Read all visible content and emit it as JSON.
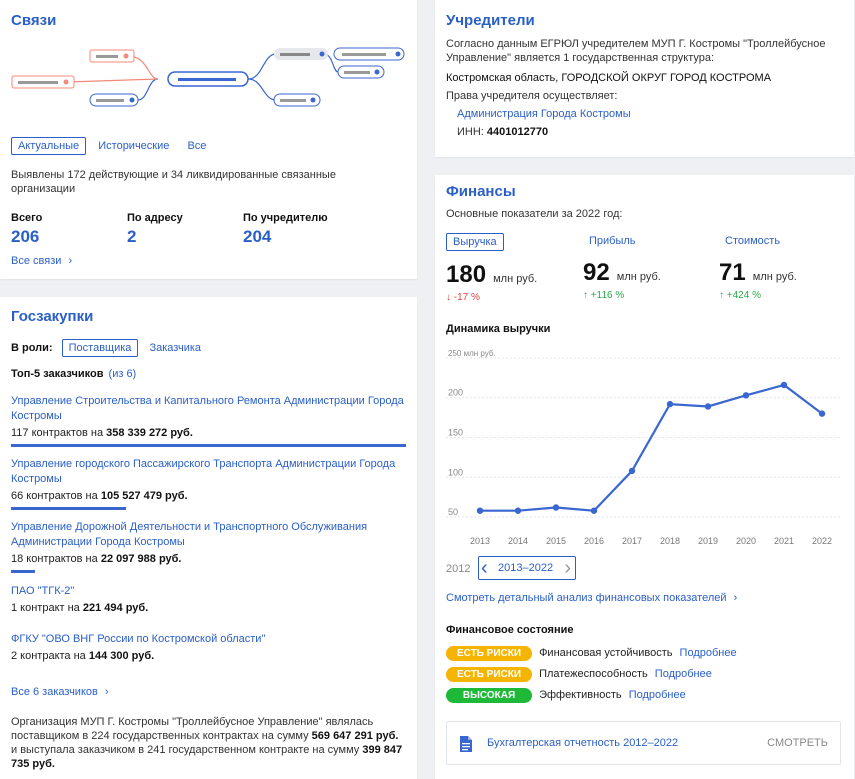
{
  "links": {
    "title": "Связи",
    "tabs": [
      "Актуальные",
      "Исторические",
      "Все"
    ],
    "description": "Выявлены 172 действующие и 34 ликвидированные связанные организации",
    "stats": [
      {
        "label": "Всего",
        "value": "206"
      },
      {
        "label": "По адресу",
        "value": "2"
      },
      {
        "label": "По учредителю",
        "value": "204"
      }
    ],
    "all_link": "Все связи"
  },
  "founders": {
    "title": "Учредители",
    "text": "Согласно данным ЕГРЮЛ учредителем МУП Г. Костромы \"Троллейбусное Управление\" является 1 государственная структура:",
    "region": "Костромская область, ГОРОДСКОЙ ОКРУГ ГОРОД КОСТРОМА",
    "rights_label": "Права учредителя осуществляет:",
    "org": "Администрация Города Костромы",
    "inn_label": "ИНН:",
    "inn": "4401012770"
  },
  "procurement": {
    "title": "Госзакупки",
    "role_label": "В роли:",
    "roles": [
      "Поставщика",
      "Заказчика"
    ],
    "top_label": "Топ-5 заказчиков",
    "top_count": "(из 6)",
    "customers": [
      {
        "name": "Управление Строительства и Капитального Ремонта Администрации Города Костромы",
        "contracts": "117 контрактов на",
        "sum": "358 339 272 руб.",
        "share": 1.0
      },
      {
        "name": "Управление городского Пассажирского Транспорта Администрации Города Костромы",
        "contracts": "66 контрактов на",
        "sum": "105 527 479 руб.",
        "share": 0.29
      },
      {
        "name": "Управление Дорожной Деятельности и Транспортного Обслуживания Администрации Города Костромы",
        "contracts": "18 контрактов на",
        "sum": "22 097 988 руб.",
        "share": 0.06
      },
      {
        "name": "ПАО \"ТГК-2\"",
        "contracts": "1 контракт на",
        "sum": "221 494 руб.",
        "share": 0.0
      },
      {
        "name": "ФГКУ \"ОВО ВНГ России по Костромской области\"",
        "contracts": "2 контракта на",
        "sum": "144 300 руб.",
        "share": 0.0
      }
    ],
    "all_link": "Все 6 заказчиков",
    "summary_1": "Организация МУП Г. Костромы \"Троллейбусное Управление\" являлась поставщиком в 224 государственных контрактах на сумму",
    "summary_sum_1": "569 647 291 руб.",
    "summary_2": "и выступала заказчиком в 241 государственном контракте на сумму",
    "summary_sum_2": "399 847 735 руб."
  },
  "finance": {
    "title": "Финансы",
    "subtitle": "Основные показатели за 2022 год:",
    "metrics": [
      {
        "label": "Выручка",
        "value": "180",
        "unit": "млн руб.",
        "change": "-17 %",
        "arrow": "↓",
        "color": "#e0443a"
      },
      {
        "label": "Прибыль",
        "value": "92",
        "unit": "млн руб.",
        "change": "+116 %",
        "arrow": "↑",
        "color": "#2fa84f"
      },
      {
        "label": "Стоимость",
        "value": "71",
        "unit": "млн руб.",
        "change": "+424 %",
        "arrow": "↑",
        "color": "#2fa84f"
      }
    ],
    "chart_title": "Динамика выручки",
    "range_start": "2012",
    "range_label": "2013–2022",
    "detail_link": "Смотреть детальный анализ финансовых показателей",
    "state_title": "Финансовое состояние",
    "states": [
      {
        "badge": "ЕСТЬ РИСКИ",
        "color": "#f5b400",
        "label": "Финансовая устойчивость",
        "link": "Подробнее"
      },
      {
        "badge": "ЕСТЬ РИСКИ",
        "color": "#f5b400",
        "label": "Платежеспособность",
        "link": "Подробнее"
      },
      {
        "badge": "ВЫСОКАЯ",
        "color": "#1fb93a",
        "label": "Эффективность",
        "link": "Подробнее"
      }
    ],
    "report_label": "Бухгалтерская отчетность 2012–2022",
    "report_button": "СМОТРЕТЬ"
  },
  "chart_data": {
    "type": "line",
    "title": "Динамика выручки",
    "ylabel": "млн руб.",
    "x": [
      "2013",
      "2014",
      "2015",
      "2016",
      "2017",
      "2018",
      "2019",
      "2020",
      "2021",
      "2022"
    ],
    "values": [
      58,
      58,
      62,
      58,
      108,
      192,
      189,
      203,
      216,
      180
    ],
    "yticks": [
      "50",
      "100",
      "150",
      "200",
      "250 млн руб."
    ],
    "ylim": [
      40,
      260
    ],
    "color": "#3a66d0"
  }
}
